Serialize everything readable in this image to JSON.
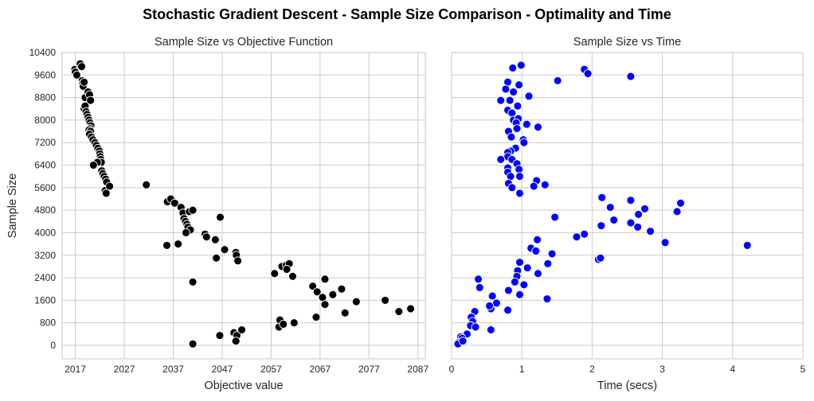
{
  "suptitle": "Stochastic Gradient Descent - Sample Size Comparison - Optimality and Time",
  "chart_data": [
    {
      "type": "scatter",
      "title": "Sample Size vs Objective Function",
      "xlabel": "Objective value",
      "ylabel": "Sample Size",
      "xlim": [
        2014.3,
        2088.5
      ],
      "ylim": [
        -480,
        10400
      ],
      "xticks": [
        2017,
        2027,
        2037,
        2047,
        2057,
        2067,
        2077,
        2087
      ],
      "yticks": [
        0,
        800,
        1600,
        2400,
        3200,
        4000,
        4800,
        5600,
        6400,
        7200,
        8000,
        8800,
        9600,
        10400
      ],
      "grid": true,
      "marker_color": "#000000",
      "points": [
        [
          2016.9,
          9800
        ],
        [
          2017.0,
          9700
        ],
        [
          2017.3,
          9600
        ],
        [
          2017.9,
          9950
        ],
        [
          2018.0,
          10000
        ],
        [
          2018.3,
          9900
        ],
        [
          2018.4,
          9400
        ],
        [
          2018.5,
          9300
        ],
        [
          2018.6,
          9200
        ],
        [
          2018.8,
          9350
        ],
        [
          2019.0,
          8800
        ],
        [
          2019.6,
          9000
        ],
        [
          2019.9,
          8900
        ],
        [
          2020.1,
          8700
        ],
        [
          2018.8,
          8400
        ],
        [
          2019.0,
          8500
        ],
        [
          2019.2,
          8300
        ],
        [
          2019.4,
          8200
        ],
        [
          2019.6,
          8100
        ],
        [
          2019.8,
          8000
        ],
        [
          2020.0,
          7900
        ],
        [
          2020.2,
          7800
        ],
        [
          2020.0,
          7700
        ],
        [
          2019.8,
          7650
        ],
        [
          2020.1,
          7600
        ],
        [
          2019.9,
          7500
        ],
        [
          2020.3,
          7400
        ],
        [
          2020.6,
          7300
        ],
        [
          2021.0,
          7200
        ],
        [
          2021.3,
          7100
        ],
        [
          2021.6,
          7000
        ],
        [
          2021.9,
          6900
        ],
        [
          2022.0,
          6800
        ],
        [
          2022.1,
          6700
        ],
        [
          2022.2,
          6600
        ],
        [
          2022.3,
          6500
        ],
        [
          2021.5,
          6500
        ],
        [
          2020.7,
          6400
        ],
        [
          2022.4,
          6200
        ],
        [
          2022.6,
          6100
        ],
        [
          2022.9,
          6000
        ],
        [
          2023.2,
          5900
        ],
        [
          2023.4,
          5800
        ],
        [
          2023.1,
          5500
        ],
        [
          2023.3,
          5400
        ],
        [
          2024.0,
          5650
        ],
        [
          2031.5,
          5700
        ],
        [
          2035.8,
          5100
        ],
        [
          2036.5,
          5200
        ],
        [
          2037.3,
          5050
        ],
        [
          2038.6,
          4900
        ],
        [
          2039.0,
          4700
        ],
        [
          2039.2,
          4500
        ],
        [
          2039.5,
          4400
        ],
        [
          2039.8,
          4300
        ],
        [
          2040.3,
          4750
        ],
        [
          2040.0,
          4200
        ],
        [
          2040.5,
          4100
        ],
        [
          2041.0,
          4800
        ],
        [
          2039.6,
          4000
        ],
        [
          2038.0,
          3600
        ],
        [
          2035.7,
          3550
        ],
        [
          2043.5,
          3950
        ],
        [
          2043.8,
          3850
        ],
        [
          2045.6,
          3750
        ],
        [
          2046.6,
          4550
        ],
        [
          2047.5,
          3400
        ],
        [
          2049.8,
          3300
        ],
        [
          2049.9,
          3200
        ],
        [
          2050.2,
          3000
        ],
        [
          2045.8,
          3100
        ],
        [
          2041.0,
          2250
        ],
        [
          2041.0,
          50
        ],
        [
          2046.5,
          350
        ],
        [
          2049.4,
          450
        ],
        [
          2050.0,
          350
        ],
        [
          2051.0,
          550
        ],
        [
          2049.8,
          150
        ],
        [
          2057.7,
          2550
        ],
        [
          2059.2,
          2800
        ],
        [
          2060.1,
          2850
        ],
        [
          2060.7,
          2900
        ],
        [
          2060.2,
          2700
        ],
        [
          2061.4,
          2450
        ],
        [
          2058.6,
          650
        ],
        [
          2058.8,
          900
        ],
        [
          2059.5,
          750
        ],
        [
          2061.7,
          800
        ],
        [
          2065.5,
          2100
        ],
        [
          2066.4,
          1900
        ],
        [
          2067.5,
          1700
        ],
        [
          2068.0,
          2350
        ],
        [
          2068.0,
          1450
        ],
        [
          2069.6,
          1800
        ],
        [
          2071.4,
          2000
        ],
        [
          2066.2,
          1000
        ],
        [
          2072.1,
          1150
        ],
        [
          2074.4,
          1550
        ],
        [
          2080.3,
          1600
        ],
        [
          2083.1,
          1200
        ],
        [
          2085.5,
          1300
        ]
      ]
    },
    {
      "type": "scatter",
      "title": "Sample Size vs Time",
      "xlabel": "Time (secs)",
      "ylabel": "Sample Size",
      "xlim": [
        0,
        5
      ],
      "ylim": [
        -480,
        10400
      ],
      "xticks": [
        0,
        1,
        2,
        3,
        4,
        5
      ],
      "yticks": [
        0,
        800,
        1600,
        2400,
        3200,
        4000,
        4800,
        5600,
        6400,
        7200,
        8000,
        8800,
        9600,
        10400
      ],
      "grid": true,
      "marker_color": "#0000ff",
      "points": [
        [
          0.87,
          9850
        ],
        [
          0.99,
          9950
        ],
        [
          0.96,
          9250
        ],
        [
          0.8,
          9350
        ],
        [
          0.77,
          9100
        ],
        [
          0.88,
          9000
        ],
        [
          0.7,
          8700
        ],
        [
          0.83,
          8700
        ],
        [
          0.8,
          8350
        ],
        [
          0.86,
          8250
        ],
        [
          0.94,
          8500
        ],
        [
          1.1,
          8850
        ],
        [
          0.88,
          8000
        ],
        [
          0.95,
          8050
        ],
        [
          0.92,
          7900
        ],
        [
          1.07,
          7850
        ],
        [
          1.23,
          7750
        ],
        [
          1.51,
          9400
        ],
        [
          1.89,
          9800
        ],
        [
          1.94,
          9650
        ],
        [
          2.55,
          9550
        ],
        [
          0.81,
          7600
        ],
        [
          0.85,
          7400
        ],
        [
          0.93,
          7700
        ],
        [
          1.02,
          7300
        ],
        [
          1.03,
          7200
        ],
        [
          0.91,
          7000
        ],
        [
          0.84,
          6900
        ],
        [
          0.8,
          6850
        ],
        [
          0.8,
          6700
        ],
        [
          0.7,
          6600
        ],
        [
          0.86,
          6600
        ],
        [
          0.93,
          6450
        ],
        [
          0.8,
          6300
        ],
        [
          0.96,
          6250
        ],
        [
          0.8,
          6150
        ],
        [
          0.84,
          6000
        ],
        [
          0.97,
          6000
        ],
        [
          0.81,
          5750
        ],
        [
          0.86,
          5600
        ],
        [
          1.21,
          5850
        ],
        [
          1.17,
          5650
        ],
        [
          1.33,
          5700
        ],
        [
          0.97,
          5400
        ],
        [
          1.47,
          4550
        ],
        [
          2.14,
          5250
        ],
        [
          2.55,
          5150
        ],
        [
          2.31,
          4450
        ],
        [
          2.26,
          4900
        ],
        [
          2.75,
          4850
        ],
        [
          2.66,
          4650
        ],
        [
          2.55,
          4350
        ],
        [
          2.65,
          4200
        ],
        [
          2.83,
          4050
        ],
        [
          3.21,
          4750
        ],
        [
          3.26,
          5050
        ],
        [
          3.04,
          3650
        ],
        [
          4.21,
          3550
        ],
        [
          1.78,
          3850
        ],
        [
          1.89,
          3950
        ],
        [
          2.13,
          4250
        ],
        [
          1.22,
          3750
        ],
        [
          1.13,
          3450
        ],
        [
          1.2,
          3350
        ],
        [
          1.43,
          3250
        ],
        [
          1.37,
          2900
        ],
        [
          1.08,
          2750
        ],
        [
          1.23,
          2550
        ],
        [
          0.97,
          2950
        ],
        [
          0.94,
          2650
        ],
        [
          0.93,
          2450
        ],
        [
          0.9,
          2250
        ],
        [
          1.03,
          2150
        ],
        [
          2.09,
          3050
        ],
        [
          2.12,
          3100
        ],
        [
          0.38,
          2350
        ],
        [
          0.4,
          2050
        ],
        [
          0.81,
          1950
        ],
        [
          0.97,
          1800
        ],
        [
          0.58,
          1750
        ],
        [
          0.64,
          1500
        ],
        [
          0.56,
          1300
        ],
        [
          0.54,
          1400
        ],
        [
          1.36,
          1650
        ],
        [
          0.8,
          1250
        ],
        [
          0.33,
          1200
        ],
        [
          0.28,
          1000
        ],
        [
          0.3,
          850
        ],
        [
          0.27,
          700
        ],
        [
          0.34,
          650
        ],
        [
          0.56,
          550
        ],
        [
          0.22,
          400
        ],
        [
          0.13,
          300
        ],
        [
          0.15,
          250
        ],
        [
          0.1,
          100
        ],
        [
          0.09,
          50
        ],
        [
          0.16,
          150
        ]
      ]
    }
  ]
}
